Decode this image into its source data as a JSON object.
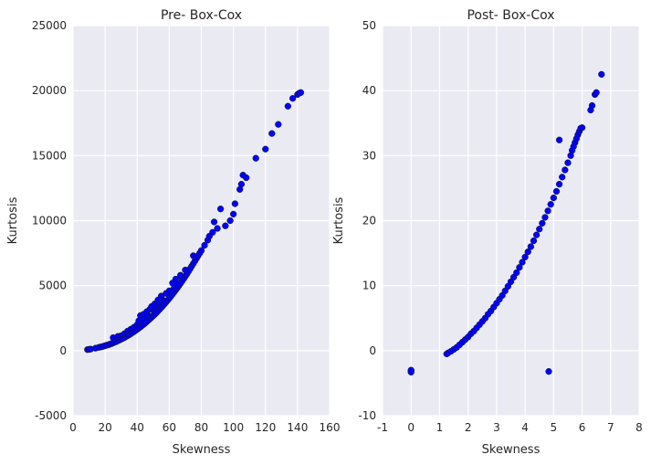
{
  "chart_data": [
    {
      "type": "scatter",
      "title": "Pre- Box-Cox",
      "xlabel": "Skewness",
      "ylabel": "Kurtosis",
      "xlim": [
        0,
        160
      ],
      "ylim": [
        -5000,
        25000
      ],
      "xticks": [
        0,
        20,
        40,
        60,
        80,
        100,
        120,
        140,
        160
      ],
      "yticks": [
        -5000,
        0,
        5000,
        10000,
        15000,
        20000,
        25000
      ],
      "color": "#0000ff",
      "grid": true,
      "points": [
        [
          9,
          80
        ],
        [
          10,
          100
        ],
        [
          11,
          120
        ],
        [
          14,
          190
        ],
        [
          16,
          250
        ],
        [
          17,
          280
        ],
        [
          18,
          300
        ],
        [
          19,
          340
        ],
        [
          20,
          380
        ],
        [
          21,
          420
        ],
        [
          22,
          450
        ],
        [
          23,
          500
        ],
        [
          24,
          540
        ],
        [
          25,
          600
        ],
        [
          25,
          1000
        ],
        [
          26,
          650
        ],
        [
          27,
          700
        ],
        [
          28,
          760
        ],
        [
          28,
          1100
        ],
        [
          29,
          820
        ],
        [
          30,
          880
        ],
        [
          30,
          1150
        ],
        [
          31,
          950
        ],
        [
          32,
          1000
        ],
        [
          32,
          1300
        ],
        [
          33,
          1080
        ],
        [
          34,
          1150
        ],
        [
          34,
          1500
        ],
        [
          35,
          1220
        ],
        [
          36,
          1300
        ],
        [
          36,
          1650
        ],
        [
          37,
          1380
        ],
        [
          38,
          1460
        ],
        [
          38,
          1800
        ],
        [
          39,
          1550
        ],
        [
          40,
          1640
        ],
        [
          40,
          2000
        ],
        [
          41,
          1730
        ],
        [
          41,
          2300
        ],
        [
          42,
          1820
        ],
        [
          42,
          2700
        ],
        [
          43,
          1920
        ],
        [
          43,
          2400
        ],
        [
          44,
          2020
        ],
        [
          44,
          2800
        ],
        [
          45,
          2120
        ],
        [
          45,
          2500
        ],
        [
          46,
          2230
        ],
        [
          46,
          3000
        ],
        [
          47,
          2340
        ],
        [
          47,
          2700
        ],
        [
          48,
          2450
        ],
        [
          48,
          3200
        ],
        [
          49,
          2560
        ],
        [
          49,
          3400
        ],
        [
          50,
          2680
        ],
        [
          50,
          3100
        ],
        [
          51,
          2800
        ],
        [
          51,
          3600
        ],
        [
          52,
          2920
        ],
        [
          52,
          3300
        ],
        [
          53,
          3050
        ],
        [
          53,
          3900
        ],
        [
          54,
          3180
        ],
        [
          54,
          3700
        ],
        [
          55,
          3310
        ],
        [
          55,
          4200
        ],
        [
          56,
          3450
        ],
        [
          56,
          3900
        ],
        [
          57,
          3590
        ],
        [
          58,
          3730
        ],
        [
          58,
          4400
        ],
        [
          59,
          3880
        ],
        [
          60,
          4030
        ],
        [
          60,
          4600
        ],
        [
          61,
          4180
        ],
        [
          62,
          4340
        ],
        [
          62,
          5200
        ],
        [
          63,
          4500
        ],
        [
          63,
          4800
        ],
        [
          64,
          4660
        ],
        [
          64,
          5500
        ],
        [
          65,
          4830
        ],
        [
          65,
          5100
        ],
        [
          66,
          5000
        ],
        [
          67,
          5170
        ],
        [
          67,
          5800
        ],
        [
          68,
          5350
        ],
        [
          68,
          5600
        ],
        [
          69,
          5530
        ],
        [
          70,
          5720
        ],
        [
          70,
          6200
        ],
        [
          71,
          5900
        ],
        [
          72,
          6100
        ],
        [
          73,
          6300
        ],
        [
          74,
          6500
        ],
        [
          75,
          6700
        ],
        [
          75,
          7300
        ],
        [
          76,
          6900
        ],
        [
          77,
          7100
        ],
        [
          78,
          7300
        ],
        [
          79,
          7500
        ],
        [
          80,
          7700
        ],
        [
          82,
          8100
        ],
        [
          84,
          8500
        ],
        [
          85,
          8800
        ],
        [
          87,
          9100
        ],
        [
          88,
          9900
        ],
        [
          90,
          9400
        ],
        [
          92,
          10900
        ],
        [
          95,
          9600
        ],
        [
          98,
          10000
        ],
        [
          100,
          10500
        ],
        [
          101,
          11300
        ],
        [
          104,
          12400
        ],
        [
          105,
          12800
        ],
        [
          106,
          13500
        ],
        [
          108,
          13300
        ],
        [
          114,
          14800
        ],
        [
          120,
          15500
        ],
        [
          124,
          16700
        ],
        [
          128,
          17400
        ],
        [
          134,
          18800
        ],
        [
          137,
          19400
        ],
        [
          140,
          19700
        ],
        [
          141,
          19800
        ],
        [
          142,
          19850
        ]
      ]
    },
    {
      "type": "scatter",
      "title": "Post- Box-Cox",
      "xlabel": "Skewness",
      "ylabel": "Kurtosis",
      "xlim": [
        -1,
        8
      ],
      "ylim": [
        -10,
        50
      ],
      "xticks": [
        -1,
        0,
        1,
        2,
        3,
        4,
        5,
        6,
        7,
        8
      ],
      "yticks": [
        -10,
        0,
        10,
        20,
        30,
        40,
        50
      ],
      "color": "#0000ff",
      "grid": true,
      "points": [
        [
          0,
          -3.1
        ],
        [
          0,
          -3.2
        ],
        [
          0,
          -3.3
        ],
        [
          0,
          -3.0
        ],
        [
          4.83,
          -3.2
        ],
        [
          5.2,
          32.4
        ],
        [
          1.25,
          -0.5
        ],
        [
          1.3,
          -0.35
        ],
        [
          1.4,
          -0.1
        ],
        [
          1.5,
          0.2
        ],
        [
          1.6,
          0.5
        ],
        [
          1.7,
          0.9
        ],
        [
          1.8,
          1.3
        ],
        [
          1.9,
          1.7
        ],
        [
          2.0,
          2.1
        ],
        [
          2.1,
          2.6
        ],
        [
          2.2,
          3.0
        ],
        [
          2.3,
          3.5
        ],
        [
          2.4,
          4.0
        ],
        [
          2.5,
          4.5
        ],
        [
          2.6,
          5.0
        ],
        [
          2.7,
          5.6
        ],
        [
          2.8,
          6.1
        ],
        [
          2.9,
          6.7
        ],
        [
          3.0,
          7.3
        ],
        [
          3.1,
          7.9
        ],
        [
          3.2,
          8.5
        ],
        [
          3.3,
          9.2
        ],
        [
          3.4,
          9.9
        ],
        [
          3.5,
          10.6
        ],
        [
          3.6,
          11.3
        ],
        [
          3.7,
          12.0
        ],
        [
          3.8,
          12.8
        ],
        [
          3.9,
          13.6
        ],
        [
          4.0,
          14.4
        ],
        [
          4.1,
          15.2
        ],
        [
          4.2,
          16.0
        ],
        [
          4.3,
          16.9
        ],
        [
          4.4,
          17.8
        ],
        [
          4.5,
          18.7
        ],
        [
          4.6,
          19.6
        ],
        [
          4.7,
          20.5
        ],
        [
          4.8,
          21.5
        ],
        [
          4.9,
          22.5
        ],
        [
          5.0,
          23.5
        ],
        [
          5.1,
          24.5
        ],
        [
          5.2,
          25.6
        ],
        [
          5.3,
          26.7
        ],
        [
          5.4,
          27.8
        ],
        [
          5.5,
          28.9
        ],
        [
          5.6,
          30.0
        ],
        [
          5.65,
          30.8
        ],
        [
          5.7,
          31.4
        ],
        [
          5.75,
          32.0
        ],
        [
          5.8,
          32.6
        ],
        [
          5.85,
          33.2
        ],
        [
          5.9,
          33.7
        ],
        [
          5.95,
          34.2
        ],
        [
          6.0,
          34.3
        ],
        [
          6.3,
          37.0
        ],
        [
          6.35,
          37.7
        ],
        [
          6.45,
          39.4
        ],
        [
          6.5,
          39.7
        ],
        [
          6.68,
          42.5
        ]
      ]
    }
  ]
}
